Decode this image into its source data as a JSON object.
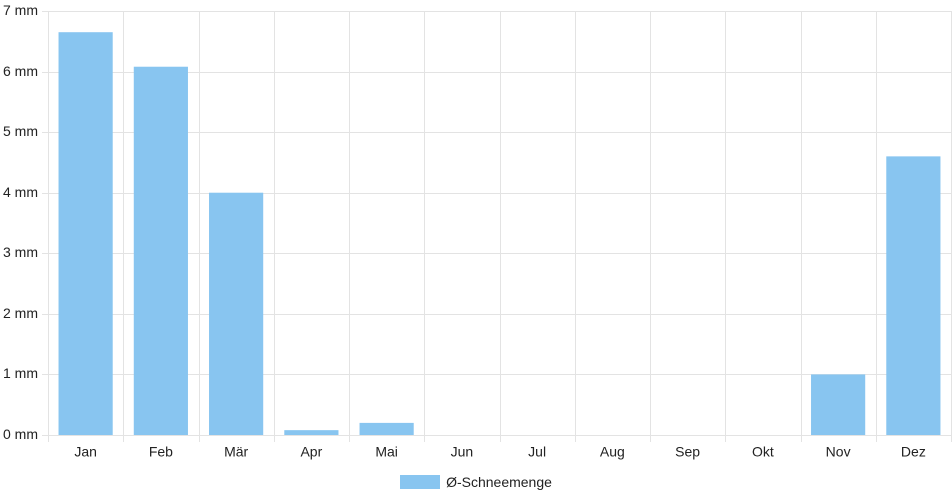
{
  "chart_data": {
    "type": "bar",
    "categories": [
      "Jan",
      "Feb",
      "Mär",
      "Apr",
      "Mai",
      "Jun",
      "Jul",
      "Aug",
      "Sep",
      "Okt",
      "Nov",
      "Dez"
    ],
    "series": [
      {
        "name": "Ø-Schneemenge",
        "values": [
          6.65,
          6.08,
          4.0,
          0.08,
          0.2,
          0,
          0,
          0,
          0,
          0,
          1.0,
          4.6
        ]
      }
    ],
    "ylim": [
      0,
      7
    ],
    "yticks": [
      0,
      1,
      2,
      3,
      4,
      5,
      6,
      7
    ],
    "y_unit": "mm",
    "grid": true,
    "legend_position": "bottom",
    "colors": {
      "bar": "#88c5f0",
      "grid": "#e3e3e3",
      "text": "#222222"
    }
  }
}
